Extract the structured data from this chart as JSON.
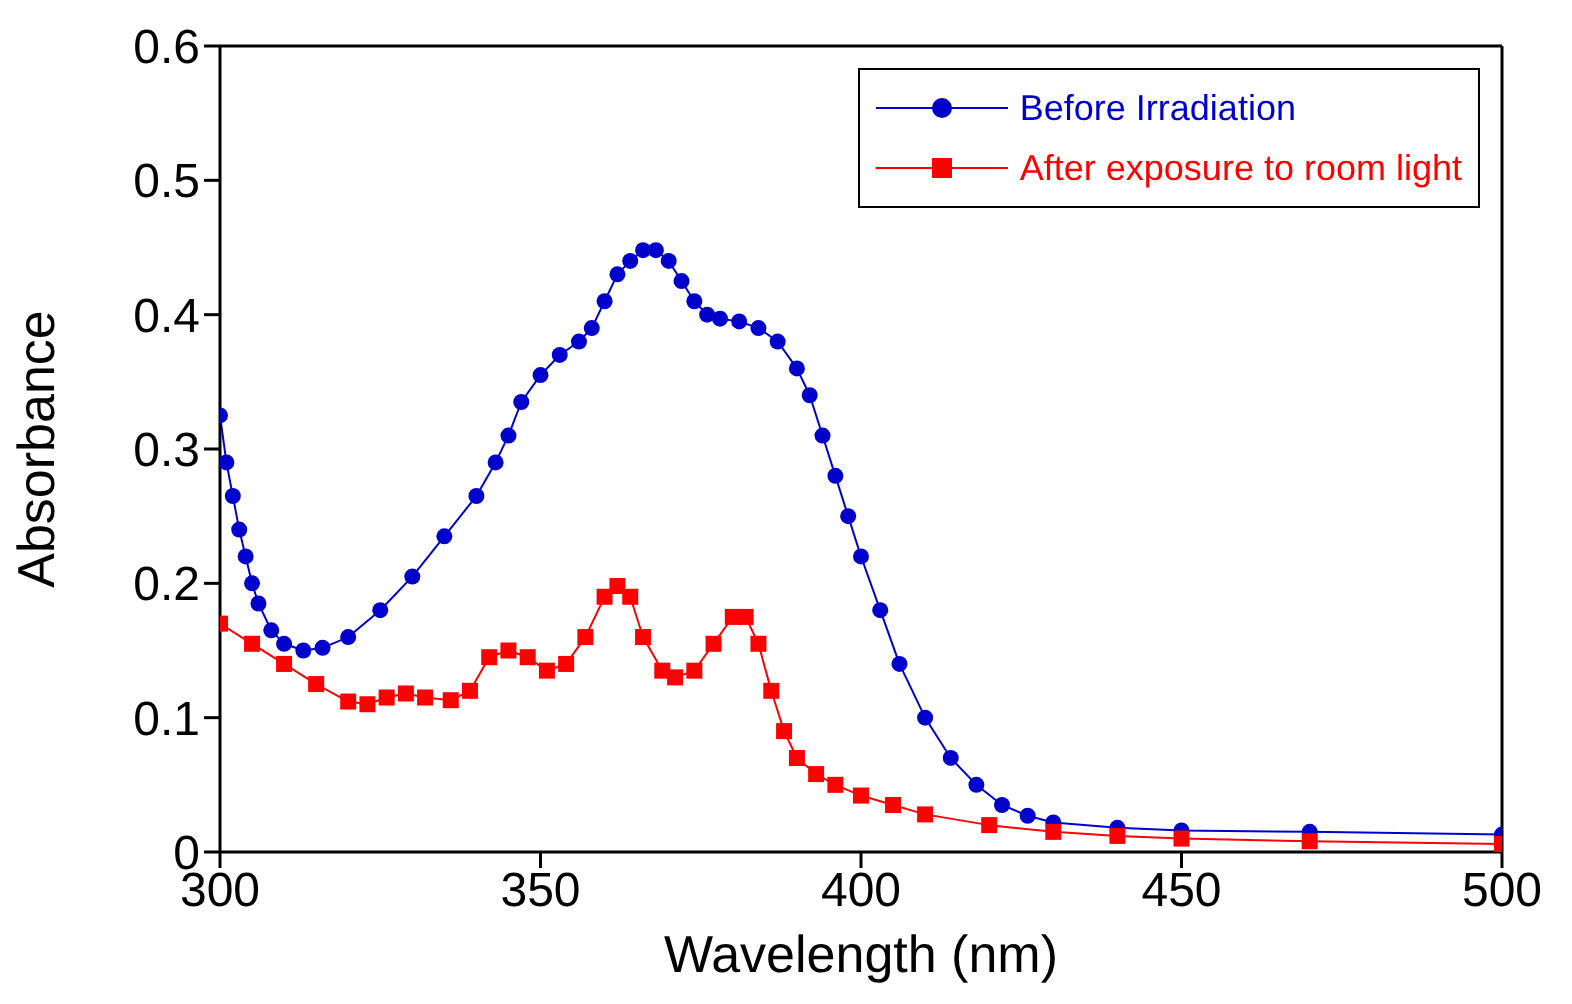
{
  "chart_data": {
    "type": "line",
    "xlabel": "Wavelength (nm)",
    "ylabel": "Absorbance",
    "xlim": [
      300,
      500
    ],
    "xticks": [
      300,
      350,
      400,
      450,
      500
    ],
    "ylim": [
      0,
      0.6
    ],
    "yticks": [
      0,
      0.1,
      0.2,
      0.3,
      0.4,
      0.5,
      0.6
    ],
    "grid": false,
    "legend": "top right",
    "series": [
      {
        "name": "Before Irradiation",
        "color": "#0000cc",
        "marker": "circle",
        "x": [
          300,
          301,
          302,
          303,
          304,
          305,
          306,
          308,
          310,
          313,
          316,
          320,
          325,
          330,
          335,
          340,
          343,
          345,
          347,
          350,
          353,
          356,
          358,
          360,
          362,
          364,
          366,
          368,
          370,
          372,
          374,
          376,
          378,
          381,
          384,
          387,
          390,
          392,
          394,
          396,
          398,
          400,
          403,
          406,
          410,
          414,
          418,
          422,
          426,
          430,
          440,
          450,
          470,
          500
        ],
        "values": [
          0.325,
          0.29,
          0.265,
          0.24,
          0.22,
          0.2,
          0.185,
          0.165,
          0.155,
          0.15,
          0.152,
          0.16,
          0.18,
          0.205,
          0.235,
          0.265,
          0.29,
          0.31,
          0.335,
          0.355,
          0.37,
          0.38,
          0.39,
          0.41,
          0.43,
          0.44,
          0.448,
          0.448,
          0.44,
          0.425,
          0.41,
          0.4,
          0.397,
          0.395,
          0.39,
          0.38,
          0.36,
          0.34,
          0.31,
          0.28,
          0.25,
          0.22,
          0.18,
          0.14,
          0.1,
          0.07,
          0.05,
          0.035,
          0.027,
          0.022,
          0.018,
          0.016,
          0.015,
          0.013
        ]
      },
      {
        "name": "After exposure to room light",
        "color": "#ff0000",
        "marker": "square",
        "x": [
          300,
          305,
          310,
          315,
          320,
          323,
          326,
          329,
          332,
          336,
          339,
          342,
          345,
          348,
          351,
          354,
          357,
          360,
          362,
          364,
          366,
          369,
          371,
          374,
          377,
          380,
          382,
          384,
          386,
          388,
          390,
          393,
          396,
          400,
          405,
          410,
          420,
          430,
          440,
          450,
          470,
          500
        ],
        "values": [
          0.17,
          0.155,
          0.14,
          0.125,
          0.112,
          0.11,
          0.115,
          0.118,
          0.115,
          0.113,
          0.12,
          0.145,
          0.15,
          0.145,
          0.135,
          0.14,
          0.16,
          0.19,
          0.198,
          0.19,
          0.16,
          0.135,
          0.13,
          0.135,
          0.155,
          0.175,
          0.175,
          0.155,
          0.12,
          0.09,
          0.07,
          0.058,
          0.05,
          0.042,
          0.035,
          0.028,
          0.02,
          0.015,
          0.012,
          0.01,
          0.008,
          0.006
        ]
      }
    ]
  }
}
